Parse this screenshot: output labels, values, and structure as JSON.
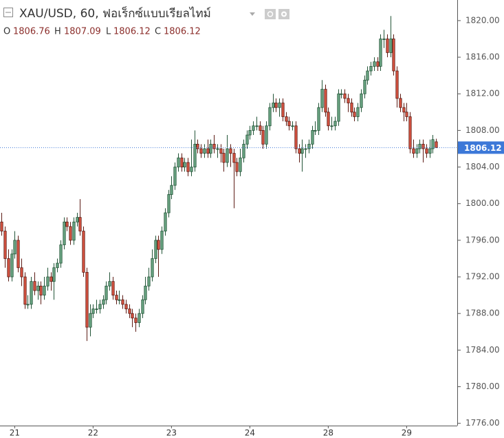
{
  "chart_data": {
    "type": "candlestick",
    "title": "XAU/USD, 60, ฟอเร็กซ์แบบเรียลไทม์",
    "legend_labels": [
      "O",
      "H",
      "L",
      "C"
    ],
    "open": [
      1798,
      1797,
      1794,
      1792,
      1794.5,
      1796,
      1793,
      1792,
      1789,
      1789,
      1791.5,
      1790.5,
      1791,
      1790,
      1791,
      1792,
      1791.5,
      1793,
      1793.5,
      1795.5,
      1798,
      1797.5,
      1796,
      1798,
      1798.5,
      1797,
      1792.5,
      1786.5,
      1788,
      1788.5,
      1788.5,
      1789,
      1789.5,
      1791,
      1791.5,
      1790,
      1789.5,
      1789.5,
      1789,
      1788.5,
      1788,
      1787.5,
      1787,
      1788,
      1789.5,
      1791,
      1792,
      1794,
      1796,
      1795,
      1797,
      1799,
      1801,
      1802,
      1804,
      1805,
      1804,
      1804.5,
      1803.5,
      1804,
      1806.5,
      1806,
      1805.5,
      1806,
      1805.5,
      1806.5,
      1806,
      1806,
      1805.5,
      1804.5,
      1806,
      1805.5,
      1804.5,
      1803.5,
      1805,
      1806.5,
      1807.5,
      1808,
      1808.5,
      1808.5,
      1808,
      1806.5,
      1808.5,
      1810.5,
      1811,
      1810.5,
      1811,
      1809.5,
      1809,
      1808.5,
      1808.5,
      1806,
      1805.5,
      1806,
      1806,
      1806.5,
      1808,
      1808,
      1810.5,
      1812.5,
      1810,
      1808.5,
      1808.5,
      1809,
      1812,
      1812,
      1811.5,
      1811,
      1810,
      1809.5,
      1810.5,
      1812,
      1813.5,
      1814.5,
      1815,
      1815.5,
      1815,
      1818,
      1818,
      1816.5,
      1818,
      1814.5,
      1811.5,
      1810.5,
      1810,
      1809.5,
      1806,
      1805.5,
      1806,
      1806.5,
      1806,
      1805.5,
      1806,
      1806.76
    ],
    "high": [
      1799,
      1797.5,
      1795,
      1795,
      1797,
      1796.5,
      1794,
      1792.5,
      1790,
      1792,
      1792.5,
      1791.5,
      1791.5,
      1792,
      1793,
      1792.5,
      1793.5,
      1794,
      1796,
      1798.5,
      1798.5,
      1798,
      1798.5,
      1799,
      1800.5,
      1797.5,
      1793,
      1789,
      1789,
      1789.5,
      1789.5,
      1790,
      1791.5,
      1792.5,
      1792,
      1790.5,
      1790.5,
      1790,
      1789.5,
      1789,
      1788.5,
      1788,
      1788.5,
      1790,
      1792,
      1793,
      1795,
      1796.5,
      1796.5,
      1797.5,
      1799.5,
      1801.5,
      1803,
      1804.5,
      1805.5,
      1805.5,
      1805,
      1805,
      1807,
      1808,
      1807,
      1806.5,
      1806.5,
      1807,
      1807,
      1807.5,
      1806.5,
      1806.5,
      1806,
      1807.5,
      1806.5,
      1806,
      1805,
      1806,
      1807,
      1808,
      1808.5,
      1809,
      1809.5,
      1809,
      1808.5,
      1809,
      1811,
      1812,
      1811.5,
      1811.5,
      1811.5,
      1810,
      1809.5,
      1809,
      1809,
      1806.5,
      1807,
      1806.5,
      1807,
      1808.5,
      1809,
      1811,
      1813.5,
      1813,
      1810.5,
      1809.5,
      1809.5,
      1812.5,
      1812.5,
      1812.5,
      1812,
      1811.5,
      1810.5,
      1811,
      1812.5,
      1814,
      1815,
      1815.5,
      1816,
      1816,
      1818.5,
      1819,
      1818.5,
      1820.5,
      1818.5,
      1815,
      1812,
      1811,
      1811,
      1810,
      1807,
      1806.5,
      1807,
      1807,
      1806.5,
      1807,
      1807.5,
      1807.09
    ],
    "low": [
      1796.5,
      1793,
      1791.5,
      1791.5,
      1794,
      1792.5,
      1791,
      1788.5,
      1788.5,
      1788.5,
      1790,
      1789.5,
      1789,
      1789.5,
      1790.5,
      1790.5,
      1789.5,
      1792.5,
      1793,
      1795,
      1797,
      1795.5,
      1795.5,
      1797.5,
      1796.5,
      1792,
      1785,
      1785.5,
      1787.5,
      1788,
      1788,
      1788.5,
      1789,
      1790.5,
      1789.5,
      1789,
      1789,
      1788.5,
      1788,
      1787.5,
      1786.5,
      1786,
      1786.5,
      1787.5,
      1789,
      1790.5,
      1791.5,
      1793.5,
      1792,
      1794.5,
      1796.5,
      1798.5,
      1800.5,
      1801.5,
      1803.5,
      1803.5,
      1803.5,
      1803,
      1803,
      1803.5,
      1805.5,
      1805,
      1805,
      1805,
      1805,
      1805.5,
      1805,
      1804.5,
      1803.5,
      1804,
      1804,
      1799.5,
      1803,
      1803,
      1804.5,
      1806,
      1807,
      1807.5,
      1808,
      1807.5,
      1806,
      1806,
      1808,
      1810,
      1810,
      1809.5,
      1809,
      1808.5,
      1808,
      1808,
      1805.5,
      1804.5,
      1803.5,
      1805,
      1805.5,
      1806,
      1807.5,
      1807.5,
      1810,
      1809.5,
      1808,
      1808,
      1808,
      1808.5,
      1811.5,
      1811,
      1810,
      1809.5,
      1809,
      1809,
      1810,
      1811.5,
      1813,
      1814,
      1814.5,
      1814.5,
      1814.5,
      1817,
      1816,
      1816,
      1814,
      1810.5,
      1810,
      1809,
      1809,
      1805.5,
      1805,
      1805,
      1805.5,
      1804.5,
      1805,
      1805,
      1805.5,
      1806.12
    ],
    "close": [
      1797,
      1794,
      1792,
      1794.5,
      1796,
      1793,
      1792,
      1789,
      1789,
      1791.5,
      1790.5,
      1791,
      1790,
      1791,
      1792,
      1791.5,
      1793,
      1793.5,
      1795.5,
      1798,
      1797.5,
      1796,
      1798,
      1798.5,
      1797,
      1792.5,
      1786.5,
      1788,
      1788.5,
      1788.5,
      1789,
      1789.5,
      1791,
      1791.5,
      1790,
      1789.5,
      1789.5,
      1789,
      1788.5,
      1788,
      1787.5,
      1787,
      1788,
      1789.5,
      1791,
      1792,
      1794,
      1796,
      1795,
      1797,
      1799,
      1801,
      1802,
      1804,
      1805,
      1804,
      1804.5,
      1803.5,
      1804,
      1806.5,
      1806,
      1805.5,
      1806,
      1805.5,
      1806.5,
      1806,
      1806,
      1805.5,
      1804.5,
      1806,
      1805.5,
      1804.5,
      1803.5,
      1805,
      1806.5,
      1807.5,
      1808,
      1808.5,
      1808.5,
      1808,
      1806.5,
      1808.5,
      1810.5,
      1811,
      1810.5,
      1811,
      1809.5,
      1809,
      1808.5,
      1808.5,
      1806,
      1805.5,
      1806,
      1806,
      1806.5,
      1808,
      1808,
      1810.5,
      1812.5,
      1810,
      1808.5,
      1808.5,
      1809,
      1812,
      1812,
      1811.5,
      1811,
      1810,
      1809.5,
      1810.5,
      1812,
      1813.5,
      1814.5,
      1815,
      1815.5,
      1815,
      1818,
      1818,
      1816.5,
      1818,
      1814.5,
      1811.5,
      1810.5,
      1810,
      1809.5,
      1806,
      1805.5,
      1806,
      1806.5,
      1806,
      1805.5,
      1806,
      1807,
      1806.12
    ],
    "xlim": [
      -0.5,
      139.5
    ],
    "xticks": [
      {
        "value": 4,
        "label": "21"
      },
      {
        "value": 28,
        "label": "22"
      },
      {
        "value": 52,
        "label": "23"
      },
      {
        "value": 76,
        "label": "24"
      },
      {
        "value": 100,
        "label": "28"
      },
      {
        "value": 124,
        "label": "29"
      }
    ],
    "ylim": [
      1775.75,
      1822.25
    ],
    "yticks": [
      {
        "value": 1776,
        "label": "1776.00"
      },
      {
        "value": 1780,
        "label": "1780.00"
      },
      {
        "value": 1784,
        "label": "1784.00"
      },
      {
        "value": 1788,
        "label": "1788.00"
      },
      {
        "value": 1792,
        "label": "1792.00"
      },
      {
        "value": 1796,
        "label": "1796.00"
      },
      {
        "value": 1800,
        "label": "1800.00"
      },
      {
        "value": 1804,
        "label": "1804.00"
      },
      {
        "value": 1808,
        "label": "1808.00"
      },
      {
        "value": 1812,
        "label": "1812.00"
      },
      {
        "value": 1816,
        "label": "1816.00"
      },
      {
        "value": 1820,
        "label": "1820.00"
      }
    ],
    "grid": false,
    "up_color": "#6ba583",
    "up_border": "#225437",
    "down_color": "#d75442",
    "down_border": "#5b1a13",
    "last_price_color": "#3c78d8"
  }
}
